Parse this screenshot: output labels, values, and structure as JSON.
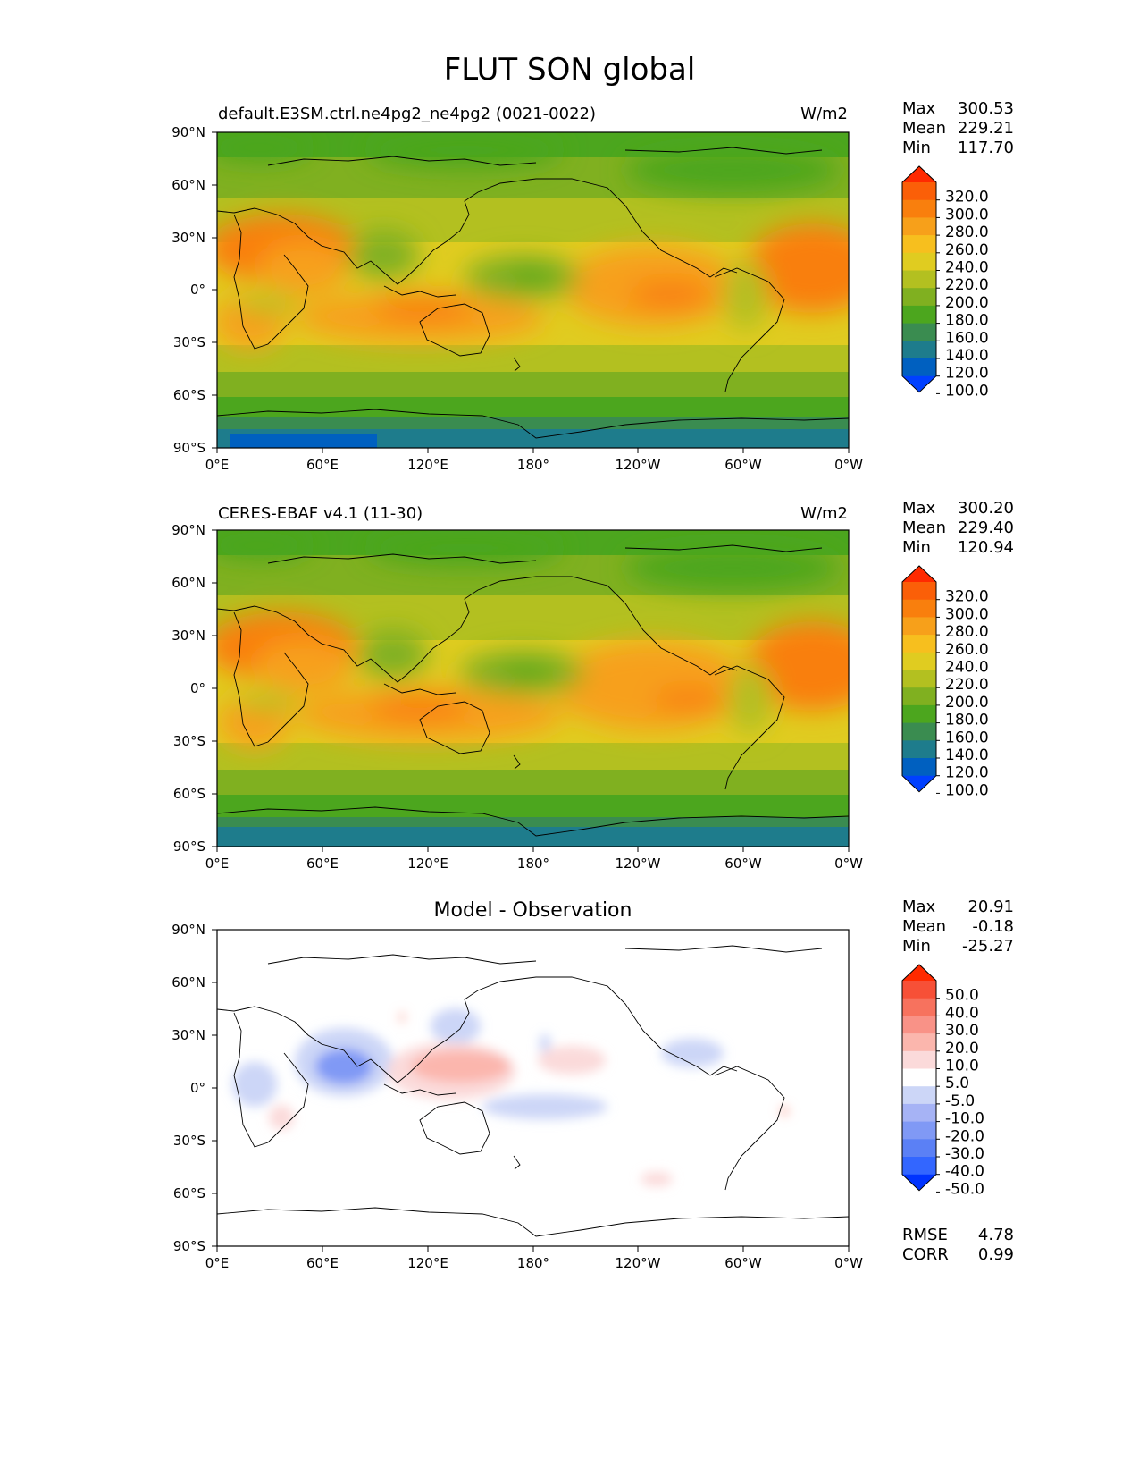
{
  "title": "FLUT SON global",
  "colors": {
    "levels_abs": [
      "#0040ff",
      "#0060c0",
      "#1e7c8c",
      "#3a8c50",
      "#4ca61e",
      "#80b020",
      "#b3c020",
      "#e0cc20",
      "#f7bf1e",
      "#f7a01a",
      "#f97f0d",
      "#fb5f08",
      "#ff2a00"
    ],
    "levels_diff": [
      "#0033ff",
      "#3366ff",
      "#5b80f5",
      "#8099f5",
      "#a6b3f5",
      "#ccd6f7",
      "#ffffff",
      "#fbdada",
      "#fbb6ad",
      "#f99287",
      "#f7725e",
      "#f75037",
      "#ff2a00"
    ]
  },
  "panels": [
    {
      "title_left": "default.E3SM.ctrl.ne4pg2_ne4pg2 (0021-0022)",
      "title_right": "W/m2",
      "title_center": "",
      "stats": {
        "max_label": "Max",
        "max": "300.53",
        "mean_label": "Mean",
        "mean": "229.21",
        "min_label": "Min",
        "min": "117.70"
      },
      "colorbar_ticks": [
        "320.0",
        "300.0",
        "280.0",
        "260.0",
        "240.0",
        "220.0",
        "200.0",
        "180.0",
        "160.0",
        "140.0",
        "120.0",
        "100.0"
      ],
      "extra_stats": null
    },
    {
      "title_left": "CERES-EBAF v4.1 (11-30)",
      "title_right": "W/m2",
      "title_center": "",
      "stats": {
        "max_label": "Max",
        "max": "300.20",
        "mean_label": "Mean",
        "mean": "229.40",
        "min_label": "Min",
        "min": "120.94"
      },
      "colorbar_ticks": [
        "320.0",
        "300.0",
        "280.0",
        "260.0",
        "240.0",
        "220.0",
        "200.0",
        "180.0",
        "160.0",
        "140.0",
        "120.0",
        "100.0"
      ],
      "extra_stats": null
    },
    {
      "title_left": "",
      "title_right": "",
      "title_center": "Model - Observation",
      "stats": {
        "max_label": "Max",
        "max": "20.91",
        "mean_label": "Mean",
        "mean": "-0.18",
        "min_label": "Min",
        "min": "-25.27"
      },
      "colorbar_ticks": [
        "50.0",
        "40.0",
        "30.0",
        "20.0",
        "10.0",
        "5.0",
        "-5.0",
        "-10.0",
        "-20.0",
        "-30.0",
        "-40.0",
        "-50.0"
      ],
      "extra_stats": {
        "rmse_label": "RMSE",
        "rmse": "4.78",
        "corr_label": "CORR",
        "corr": "0.99"
      }
    }
  ],
  "axes": {
    "y_ticks": [
      "90°N",
      "60°N",
      "30°N",
      "0°",
      "30°S",
      "60°S",
      "90°S"
    ],
    "x_ticks": [
      "0°E",
      "60°E",
      "120°E",
      "180°",
      "120°W",
      "60°W",
      "0°W"
    ]
  }
}
